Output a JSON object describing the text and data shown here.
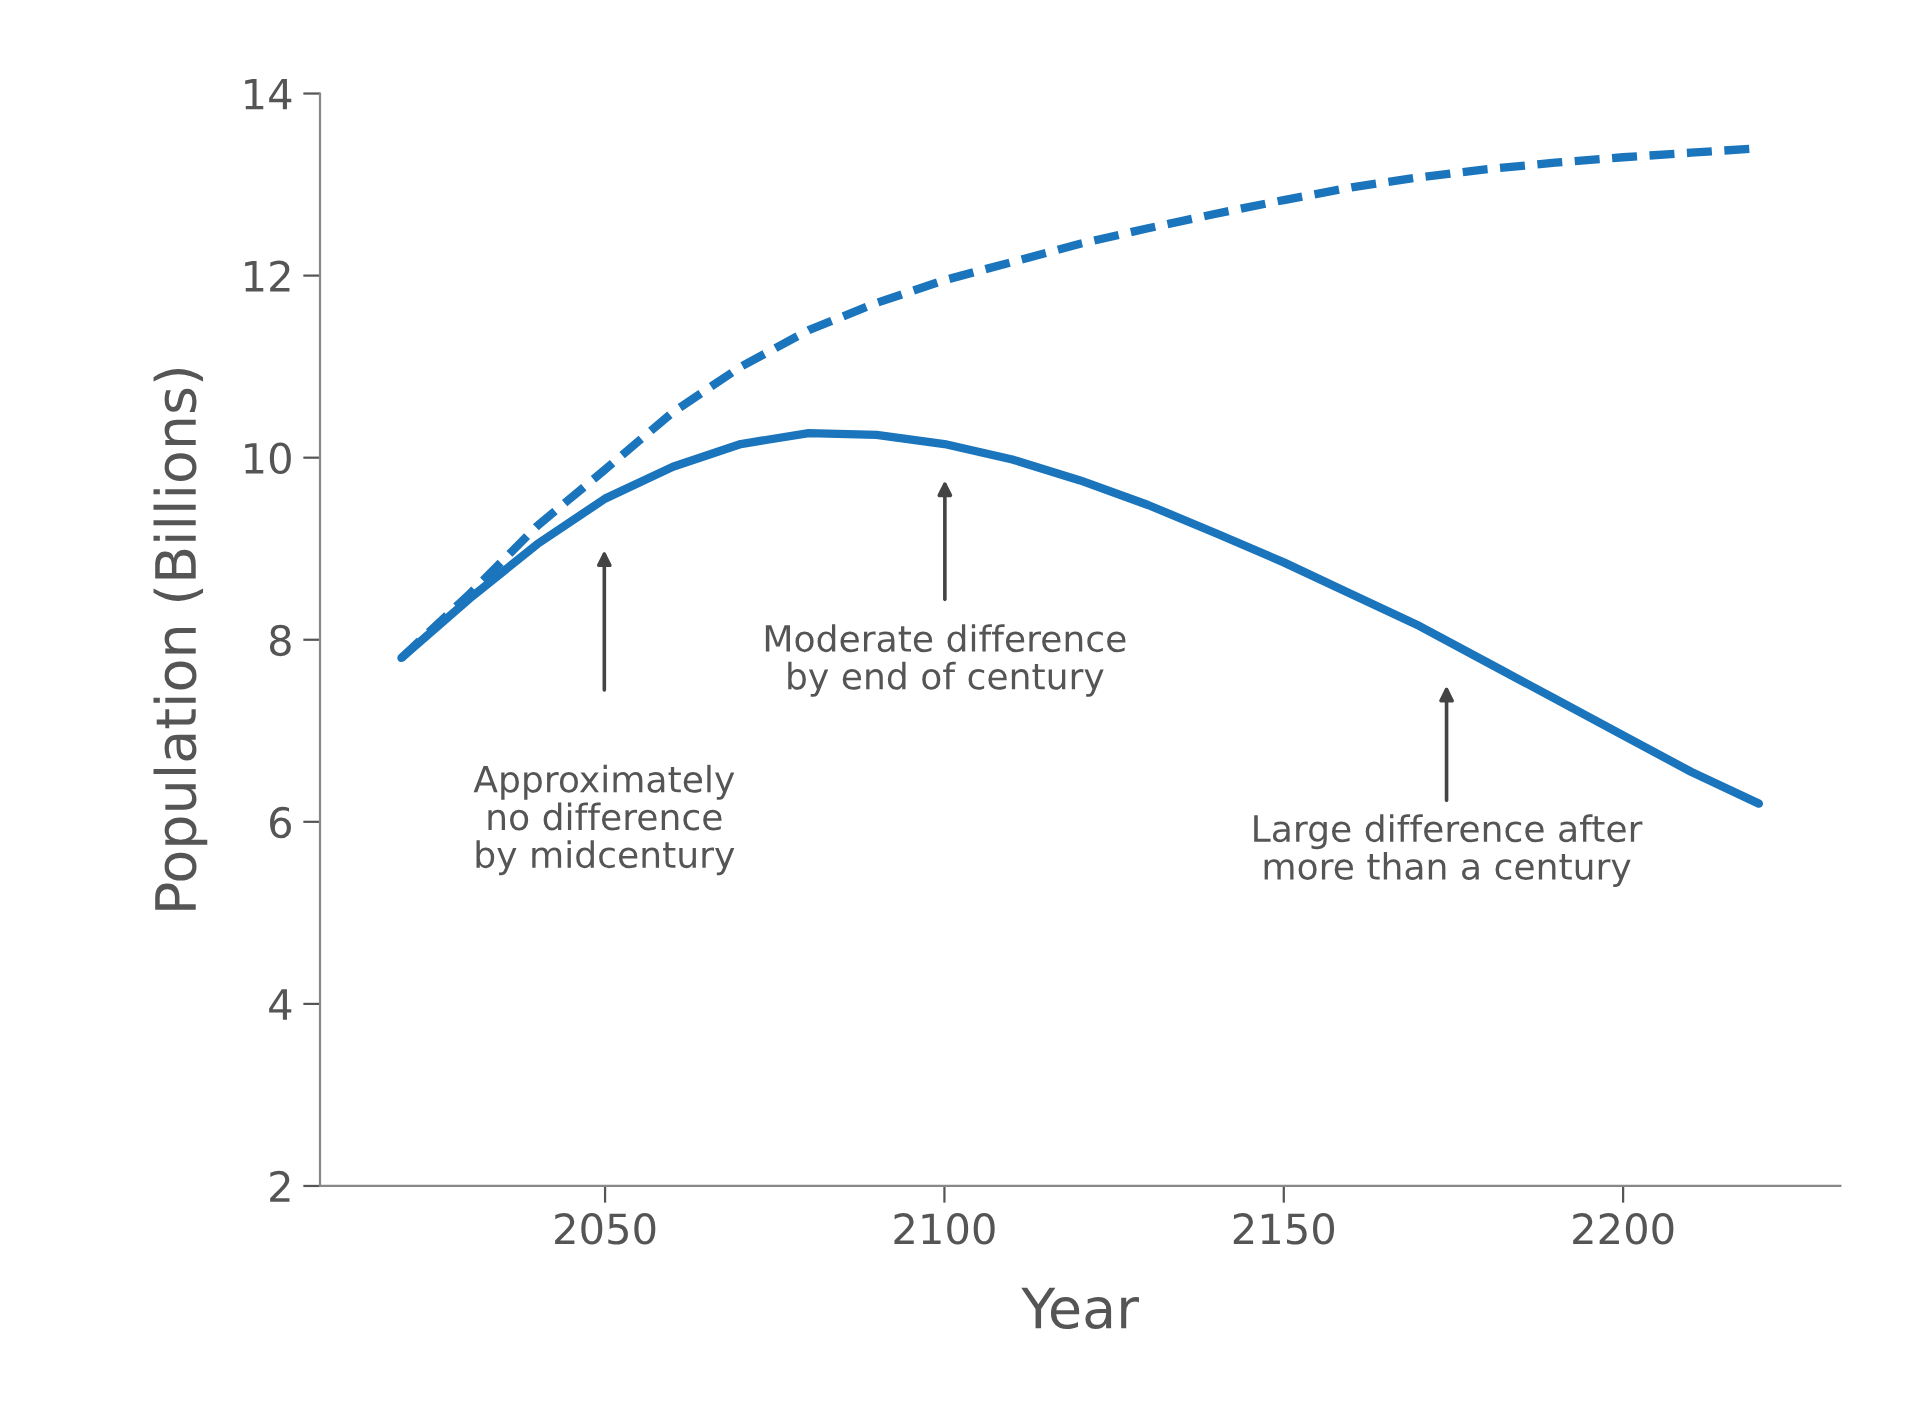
{
  "chart_data": {
    "type": "line",
    "xlabel": "Year",
    "ylabel": "Population (Billions)",
    "xlim": [
      2008,
      2232
    ],
    "ylim": [
      2,
      14
    ],
    "xticks": [
      2050,
      2100,
      2150,
      2200
    ],
    "yticks": [
      2,
      4,
      6,
      8,
      10,
      12,
      14
    ],
    "grid": false,
    "marker": "none",
    "series": [
      {
        "color": "#1b75bc",
        "line_style": "dashed",
        "x": [
          2020,
          2030,
          2040,
          2050,
          2060,
          2070,
          2080,
          2090,
          2100,
          2110,
          2120,
          2130,
          2140,
          2150,
          2160,
          2170,
          2180,
          2190,
          2200,
          2210,
          2220
        ],
        "values": [
          7.8,
          8.5,
          9.25,
          9.87,
          10.5,
          11.0,
          11.4,
          11.7,
          11.95,
          12.15,
          12.35,
          12.52,
          12.68,
          12.83,
          12.97,
          13.08,
          13.17,
          13.24,
          13.3,
          13.35,
          13.4
        ]
      },
      {
        "color": "#1b75bc",
        "line_style": "solid",
        "x": [
          2020,
          2030,
          2040,
          2050,
          2060,
          2070,
          2080,
          2090,
          2100,
          2110,
          2120,
          2130,
          2140,
          2150,
          2160,
          2170,
          2180,
          2190,
          2200,
          2210,
          2220
        ],
        "values": [
          7.8,
          8.45,
          9.05,
          9.55,
          9.9,
          10.15,
          10.27,
          10.25,
          10.15,
          9.98,
          9.75,
          9.48,
          9.17,
          8.85,
          8.5,
          8.15,
          7.75,
          7.35,
          6.95,
          6.55,
          6.2
        ]
      }
    ],
    "annotations": [
      "Approximately\nno difference\nby midcentury",
      "Moderate difference\nby end of century",
      "Large difference after\nmore than a century"
    ]
  }
}
